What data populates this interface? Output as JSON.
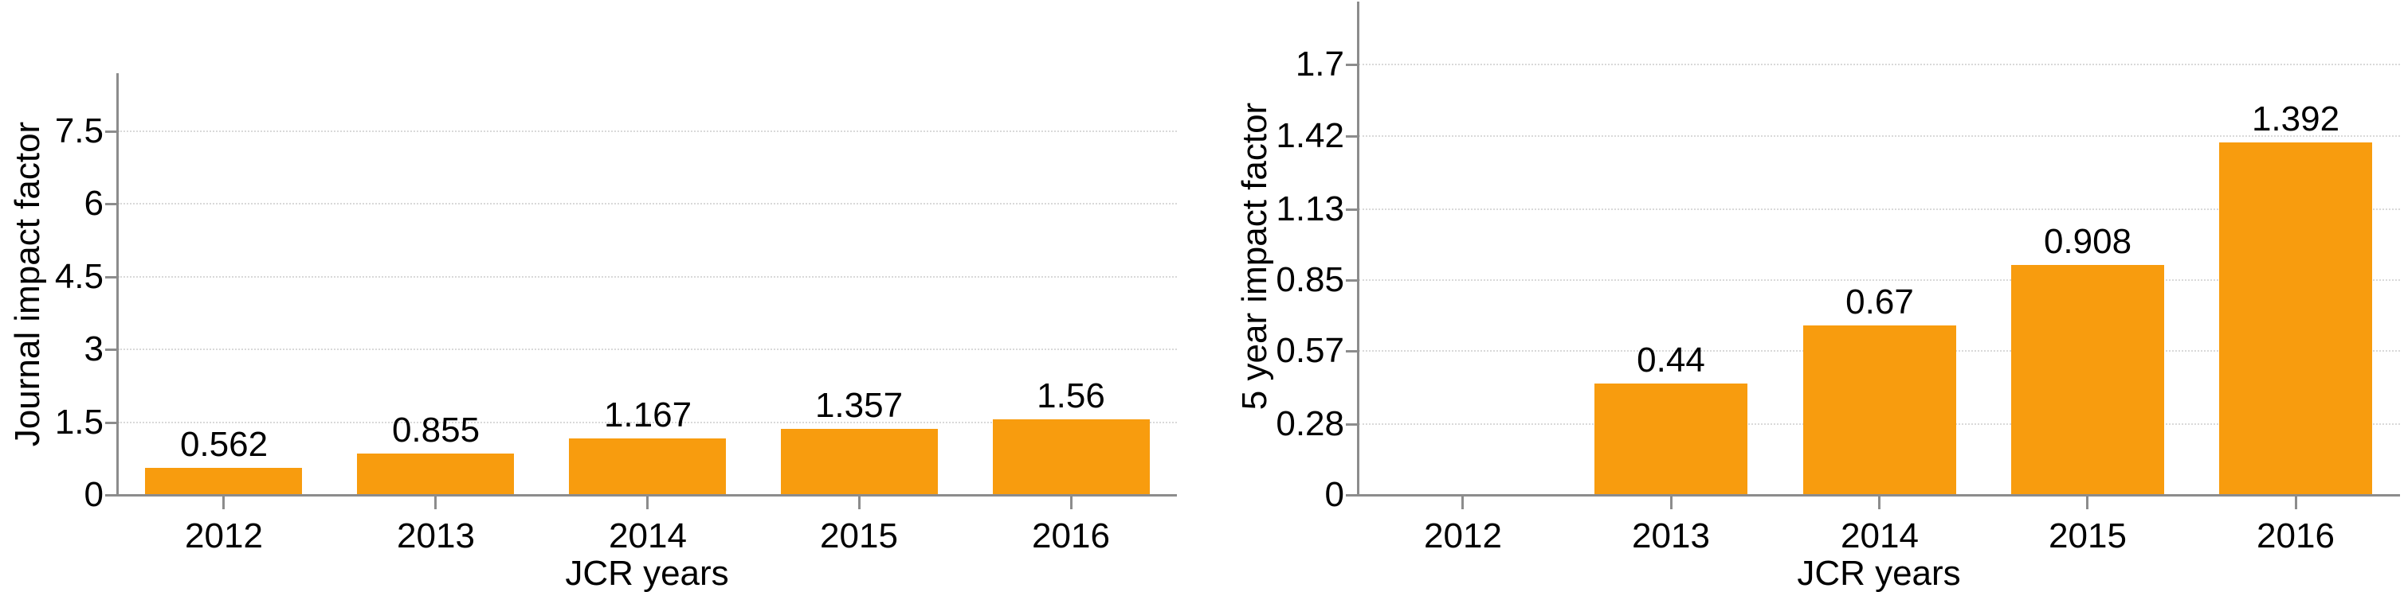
{
  "figure": {
    "background_color": "#ffffff",
    "bar_color": "#f89c0e",
    "axis_color": "#8c8c8c",
    "grid_color": "#d9d9d9",
    "text_color": "#000000"
  },
  "chart_data": [
    {
      "type": "bar",
      "title": "",
      "xlabel": "JCR years",
      "ylabel": "Journal impact factor",
      "categories": [
        "2012",
        "2013",
        "2014",
        "2015",
        "2016"
      ],
      "values": [
        0.562,
        0.855,
        1.167,
        1.357,
        1.56
      ],
      "value_labels": [
        "0.562",
        "0.855",
        "1.167",
        "1.357",
        "1.56"
      ],
      "yticks": [
        0,
        1.5,
        3,
        4.5,
        6,
        7.5
      ],
      "ytick_labels": [
        "0",
        "1.5",
        "3",
        "4.5",
        "6",
        "7.5"
      ],
      "ylim": [
        0,
        8.7
      ],
      "grid": true,
      "legend": "none"
    },
    {
      "type": "bar",
      "title": "",
      "xlabel": "JCR years",
      "ylabel": "5 year impact factor",
      "categories": [
        "2012",
        "2013",
        "2014",
        "2015",
        "2016"
      ],
      "values": [
        null,
        0.44,
        0.67,
        0.908,
        1.392
      ],
      "value_labels": [
        null,
        "0.44",
        "0.67",
        "0.908",
        "1.392"
      ],
      "yticks": [
        0,
        0.28,
        0.57,
        0.85,
        1.13,
        1.42,
        1.7
      ],
      "ytick_labels": [
        "0",
        "0.28",
        "0.57",
        "0.85",
        "1.13",
        "1.42",
        "1.7"
      ],
      "ylim": [
        0,
        1.95
      ],
      "grid": true,
      "legend": "none"
    }
  ]
}
